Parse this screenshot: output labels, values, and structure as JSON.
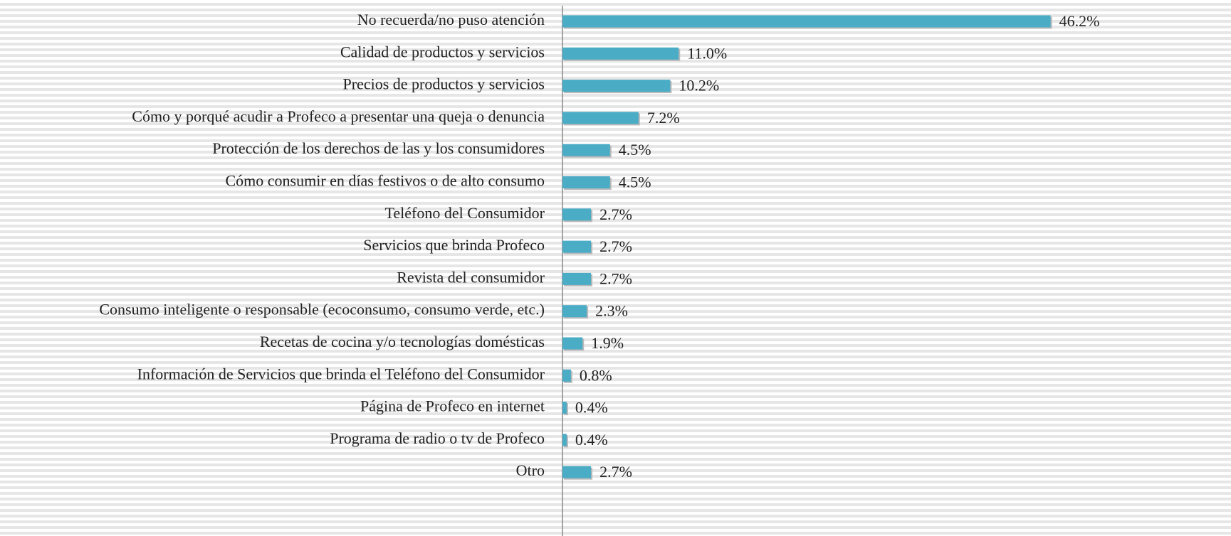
{
  "chart_data": {
    "type": "barh",
    "categories": [
      "No recuerda/no puso atención",
      "Calidad de productos y servicios",
      "Precios de productos y servicios",
      "Cómo y porqué acudir a Profeco a presentar una queja o denuncia",
      "Protección de los derechos de las y los consumidores",
      "Cómo consumir en días festivos o de alto consumo",
      "Teléfono del Consumidor",
      "Servicios que brinda Profeco",
      "Revista del consumidor",
      "Consumo inteligente o responsable (ecoconsumo, consumo verde, etc.)",
      "Recetas de cocina y/o tecnologías domésticas",
      "Información de Servicios que brinda el Teléfono del Consumidor",
      "Página de Profeco en internet",
      "Programa de radio o tv de Profeco",
      "Otro"
    ],
    "values": [
      46.2,
      11.0,
      10.2,
      7.2,
      4.5,
      4.5,
      2.7,
      2.7,
      2.7,
      2.3,
      1.9,
      0.8,
      0.4,
      0.4,
      2.7
    ],
    "value_labels": [
      "46.2%",
      "11.0%",
      "10.2%",
      "7.2%",
      "4.5%",
      "4.5%",
      "2.7%",
      "2.7%",
      "2.7%",
      "2.3%",
      "1.9%",
      "0.8%",
      "0.4%",
      "0.4%",
      "2.7%"
    ],
    "color": "#4bacc6",
    "xlim": [
      0,
      50
    ]
  }
}
